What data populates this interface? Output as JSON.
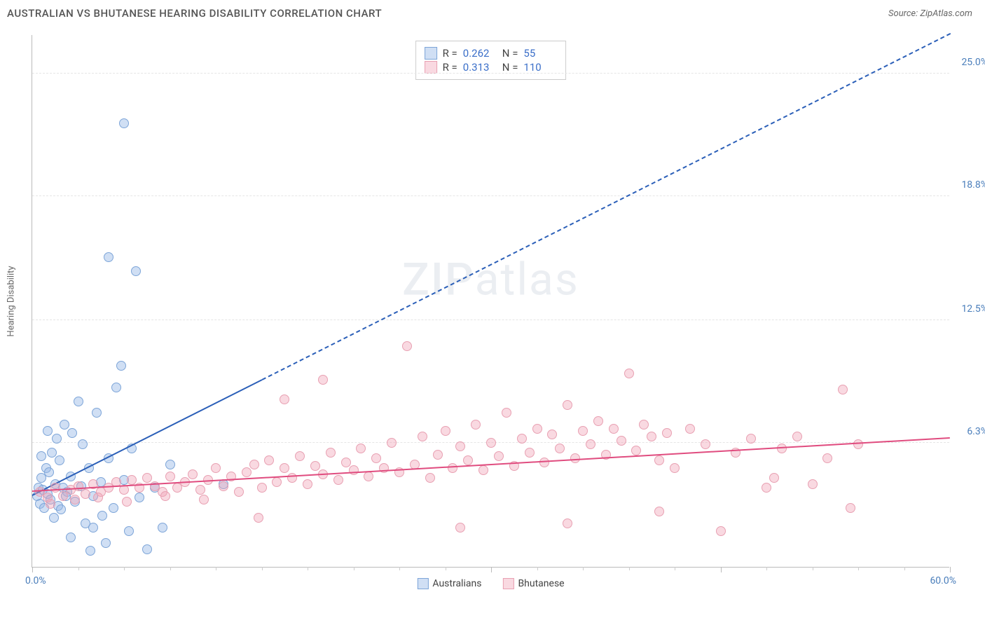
{
  "title": "AUSTRALIAN VS BHUTANESE HEARING DISABILITY CORRELATION CHART",
  "source": "Source: ZipAtlas.com",
  "watermark": {
    "bold": "ZIP",
    "light": "atlas"
  },
  "chart": {
    "type": "scatter",
    "y_axis_title": "Hearing Disability",
    "x_range": [
      0,
      60
    ],
    "y_range": [
      0,
      27
    ],
    "x_labels": {
      "min": "0.0%",
      "max": "60.0%"
    },
    "y_ticks": [
      {
        "value": 6.3,
        "label": "6.3%"
      },
      {
        "value": 12.5,
        "label": "12.5%"
      },
      {
        "value": 18.8,
        "label": "18.8%"
      },
      {
        "value": 25.0,
        "label": "25.0%"
      }
    ],
    "x_major_ticks": [
      0,
      30,
      45,
      60
    ],
    "x_minor_ticks": [
      3,
      6,
      9,
      12,
      15,
      18,
      21,
      24,
      27,
      33,
      36,
      39,
      42,
      48,
      51,
      54,
      57
    ],
    "background_color": "#ffffff",
    "grid_color": "#e5e5e5",
    "axis_color": "#bbbbbb",
    "tick_label_color": "#4a7ebb",
    "marker_radius": 7,
    "series": [
      {
        "key": "australians",
        "name": "Australians",
        "fill": "rgba(150,185,230,0.45)",
        "stroke": "#7da5d8",
        "trend_color": "#2b5fb8",
        "stats": {
          "R": "0.262",
          "N": "55"
        },
        "trend": {
          "x1": 0,
          "y1": 3.6,
          "x2_solid": 15,
          "x2": 60,
          "y2": 27
        },
        "points": [
          [
            0.3,
            3.6
          ],
          [
            0.4,
            4.0
          ],
          [
            0.5,
            3.2
          ],
          [
            0.6,
            4.5
          ],
          [
            0.7,
            3.9
          ],
          [
            0.8,
            3.0
          ],
          [
            0.9,
            5.0
          ],
          [
            1.0,
            3.7
          ],
          [
            1.1,
            4.8
          ],
          [
            1.2,
            3.4
          ],
          [
            1.3,
            5.8
          ],
          [
            1.4,
            2.5
          ],
          [
            1.5,
            4.2
          ],
          [
            1.6,
            6.5
          ],
          [
            1.7,
            3.1
          ],
          [
            1.8,
            5.4
          ],
          [
            2.0,
            4.0
          ],
          [
            2.1,
            7.2
          ],
          [
            2.3,
            3.8
          ],
          [
            2.5,
            4.6
          ],
          [
            2.6,
            6.8
          ],
          [
            2.8,
            3.3
          ],
          [
            3.0,
            8.4
          ],
          [
            3.2,
            4.1
          ],
          [
            3.5,
            2.2
          ],
          [
            3.7,
            5.0
          ],
          [
            4.0,
            3.6
          ],
          [
            4.2,
            7.8
          ],
          [
            4.5,
            4.3
          ],
          [
            4.8,
            1.2
          ],
          [
            5.0,
            5.5
          ],
          [
            5.3,
            3.0
          ],
          [
            5.5,
            9.1
          ],
          [
            6.0,
            4.4
          ],
          [
            6.3,
            1.8
          ],
          [
            6.5,
            6.0
          ],
          [
            7.0,
            3.5
          ],
          [
            7.5,
            0.9
          ],
          [
            8.0,
            4.0
          ],
          [
            8.5,
            2.0
          ],
          [
            9.0,
            5.2
          ],
          [
            5.8,
            10.2
          ],
          [
            5.0,
            15.7
          ],
          [
            6.8,
            15.0
          ],
          [
            6.0,
            22.5
          ],
          [
            2.5,
            1.5
          ],
          [
            3.8,
            0.8
          ],
          [
            4.6,
            2.6
          ],
          [
            1.9,
            2.9
          ],
          [
            2.2,
            3.6
          ],
          [
            12.5,
            4.2
          ],
          [
            1.0,
            6.9
          ],
          [
            0.6,
            5.6
          ],
          [
            3.3,
            6.2
          ],
          [
            4.0,
            2.0
          ]
        ]
      },
      {
        "key": "bhutanese",
        "name": "Bhutanese",
        "fill": "rgba(240,160,180,0.40)",
        "stroke": "#e8a0b2",
        "trend_color": "#e04c7f",
        "stats": {
          "R": "0.313",
          "N": "110"
        },
        "trend": {
          "x1": 0,
          "y1": 3.8,
          "x2_solid": 60,
          "x2": 60,
          "y2": 6.5
        },
        "points": [
          [
            0.5,
            3.8
          ],
          [
            1.0,
            3.5
          ],
          [
            1.5,
            4.0
          ],
          [
            2.0,
            3.6
          ],
          [
            2.5,
            3.9
          ],
          [
            3.0,
            4.1
          ],
          [
            3.5,
            3.7
          ],
          [
            4.0,
            4.2
          ],
          [
            4.5,
            3.8
          ],
          [
            5.0,
            4.0
          ],
          [
            5.5,
            4.3
          ],
          [
            6.0,
            3.9
          ],
          [
            6.5,
            4.4
          ],
          [
            7.0,
            4.0
          ],
          [
            7.5,
            4.5
          ],
          [
            8.0,
            4.1
          ],
          [
            8.5,
            3.8
          ],
          [
            9.0,
            4.6
          ],
          [
            9.5,
            4.0
          ],
          [
            10.0,
            4.3
          ],
          [
            10.5,
            4.7
          ],
          [
            11.0,
            3.9
          ],
          [
            11.5,
            4.4
          ],
          [
            12.0,
            5.0
          ],
          [
            12.5,
            4.1
          ],
          [
            13.0,
            4.6
          ],
          [
            13.5,
            3.8
          ],
          [
            14.0,
            4.8
          ],
          [
            14.5,
            5.2
          ],
          [
            15.0,
            4.0
          ],
          [
            15.5,
            5.4
          ],
          [
            16.0,
            4.3
          ],
          [
            16.5,
            5.0
          ],
          [
            17.0,
            4.5
          ],
          [
            17.5,
            5.6
          ],
          [
            18.0,
            4.2
          ],
          [
            18.5,
            5.1
          ],
          [
            19.0,
            4.7
          ],
          [
            19.5,
            5.8
          ],
          [
            20.0,
            4.4
          ],
          [
            20.5,
            5.3
          ],
          [
            21.0,
            4.9
          ],
          [
            21.5,
            6.0
          ],
          [
            22.0,
            4.6
          ],
          [
            22.5,
            5.5
          ],
          [
            23.0,
            5.0
          ],
          [
            23.5,
            6.3
          ],
          [
            24.0,
            4.8
          ],
          [
            24.5,
            11.2
          ],
          [
            25.0,
            5.2
          ],
          [
            25.5,
            6.6
          ],
          [
            26.0,
            4.5
          ],
          [
            26.5,
            5.7
          ],
          [
            27.0,
            6.9
          ],
          [
            27.5,
            5.0
          ],
          [
            28.0,
            6.1
          ],
          [
            28.5,
            5.4
          ],
          [
            29.0,
            7.2
          ],
          [
            29.5,
            4.9
          ],
          [
            30.0,
            6.3
          ],
          [
            30.5,
            5.6
          ],
          [
            31.0,
            7.8
          ],
          [
            31.5,
            5.1
          ],
          [
            32.0,
            6.5
          ],
          [
            32.5,
            5.8
          ],
          [
            33.0,
            7.0
          ],
          [
            33.5,
            5.3
          ],
          [
            34.0,
            6.7
          ],
          [
            34.5,
            6.0
          ],
          [
            35.0,
            8.2
          ],
          [
            35.5,
            5.5
          ],
          [
            36.0,
            6.9
          ],
          [
            36.5,
            6.2
          ],
          [
            37.0,
            7.4
          ],
          [
            37.5,
            5.7
          ],
          [
            38.0,
            7.0
          ],
          [
            38.5,
            6.4
          ],
          [
            39.0,
            9.8
          ],
          [
            39.5,
            5.9
          ],
          [
            40.0,
            7.2
          ],
          [
            40.5,
            6.6
          ],
          [
            41.0,
            5.4
          ],
          [
            41.5,
            6.8
          ],
          [
            42.0,
            5.0
          ],
          [
            43.0,
            7.0
          ],
          [
            44.0,
            6.2
          ],
          [
            45.0,
            1.8
          ],
          [
            46.0,
            5.8
          ],
          [
            47.0,
            6.5
          ],
          [
            48.0,
            4.0
          ],
          [
            49.0,
            6.0
          ],
          [
            50.0,
            6.6
          ],
          [
            51.0,
            4.2
          ],
          [
            52.0,
            5.5
          ],
          [
            53.0,
            9.0
          ],
          [
            53.5,
            3.0
          ],
          [
            54.0,
            6.2
          ],
          [
            19.0,
            9.5
          ],
          [
            16.5,
            8.5
          ],
          [
            1.2,
            3.2
          ],
          [
            2.8,
            3.4
          ],
          [
            4.3,
            3.5
          ],
          [
            6.2,
            3.3
          ],
          [
            8.7,
            3.6
          ],
          [
            11.2,
            3.4
          ],
          [
            14.8,
            2.5
          ],
          [
            28.0,
            2.0
          ],
          [
            41.0,
            2.8
          ],
          [
            35.0,
            2.2
          ],
          [
            48.5,
            4.5
          ]
        ]
      }
    ],
    "legend_labels": {
      "r": "R =",
      "n": "N ="
    }
  }
}
